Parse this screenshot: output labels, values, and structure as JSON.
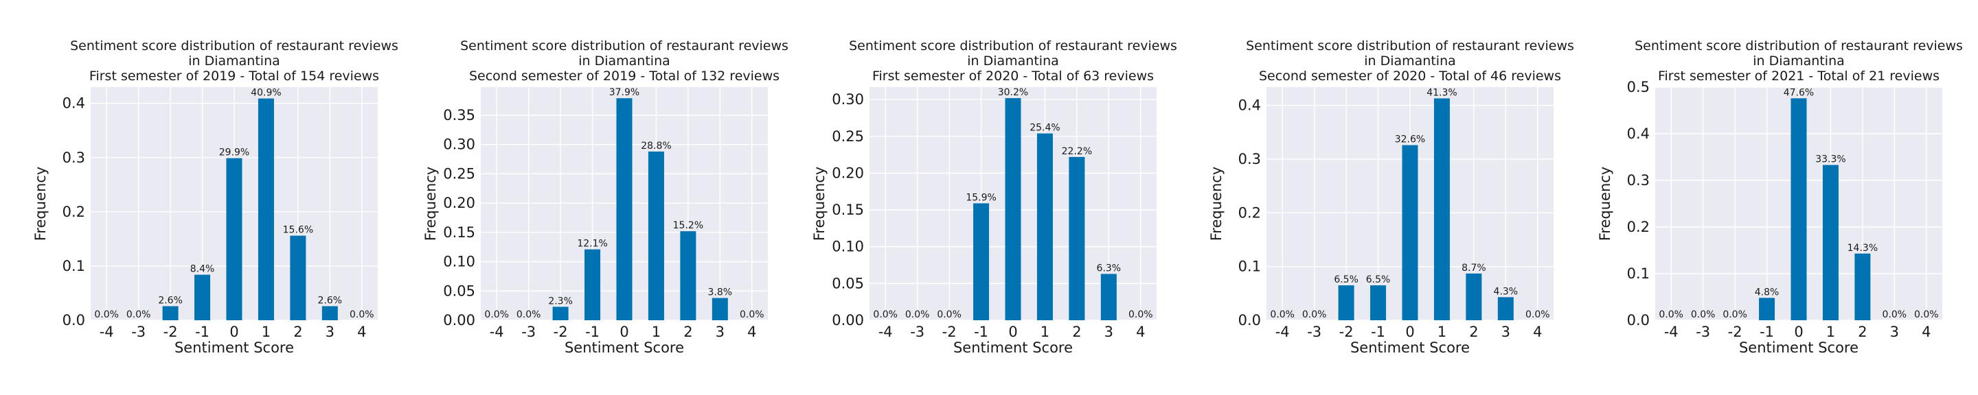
{
  "colors": {
    "bar": "#0173b2",
    "plot_bg": "#eaeaf2",
    "grid": "#ffffff"
  },
  "chart_data": [
    {
      "type": "bar",
      "title": [
        "Sentiment score distribution of restaurant reviews",
        "in Diamantina",
        "First semester of 2019 - Total of 154 reviews"
      ],
      "xlabel": "Sentiment Score",
      "ylabel": "Frequency",
      "categories": [
        "-4",
        "-3",
        "-2",
        "-1",
        "0",
        "1",
        "2",
        "3",
        "4"
      ],
      "values": [
        0.0,
        0.0,
        0.026,
        0.084,
        0.299,
        0.409,
        0.156,
        0.026,
        0.0
      ],
      "data_labels": [
        "0.0%",
        "0.0%",
        "2.6%",
        "8.4%",
        "29.9%",
        "40.9%",
        "15.6%",
        "2.6%",
        "0.0%"
      ],
      "yticks": [
        "0.0",
        "0.1",
        "0.2",
        "0.3",
        "0.4"
      ],
      "ytick_values": [
        0,
        0.1,
        0.2,
        0.3,
        0.4
      ],
      "ylim": [
        0,
        0.43
      ],
      "grid": true
    },
    {
      "type": "bar",
      "title": [
        "Sentiment score distribution of restaurant reviews",
        "in Diamantina",
        "Second semester of 2019 - Total of 132 reviews"
      ],
      "xlabel": "Sentiment Score",
      "ylabel": "Frequency",
      "categories": [
        "-4",
        "-3",
        "-2",
        "-1",
        "0",
        "1",
        "2",
        "3",
        "4"
      ],
      "values": [
        0.0,
        0.0,
        0.023,
        0.121,
        0.379,
        0.288,
        0.152,
        0.038,
        0.0
      ],
      "data_labels": [
        "0.0%",
        "0.0%",
        "2.3%",
        "12.1%",
        "37.9%",
        "28.8%",
        "15.2%",
        "3.8%",
        "0.0%"
      ],
      "yticks": [
        "0.00",
        "0.05",
        "0.10",
        "0.15",
        "0.20",
        "0.25",
        "0.30",
        "0.35"
      ],
      "ytick_values": [
        0,
        0.05,
        0.1,
        0.15,
        0.2,
        0.25,
        0.3,
        0.35
      ],
      "ylim": [
        0,
        0.398
      ],
      "grid": true
    },
    {
      "type": "bar",
      "title": [
        "Sentiment score distribution of restaurant reviews",
        "in Diamantina",
        "First semester of 2020 - Total of 63 reviews"
      ],
      "xlabel": "Sentiment Score",
      "ylabel": "Frequency",
      "categories": [
        "-4",
        "-3",
        "-2",
        "-1",
        "0",
        "1",
        "2",
        "3",
        "4"
      ],
      "values": [
        0.0,
        0.0,
        0.0,
        0.159,
        0.302,
        0.254,
        0.222,
        0.063,
        0.0
      ],
      "data_labels": [
        "0.0%",
        "0.0%",
        "0.0%",
        "15.9%",
        "30.2%",
        "25.4%",
        "22.2%",
        "6.3%",
        "0.0%"
      ],
      "yticks": [
        "0.00",
        "0.05",
        "0.10",
        "0.15",
        "0.20",
        "0.25",
        "0.30"
      ],
      "ytick_values": [
        0,
        0.05,
        0.1,
        0.15,
        0.2,
        0.25,
        0.3
      ],
      "ylim": [
        0,
        0.317
      ],
      "grid": true
    },
    {
      "type": "bar",
      "title": [
        "Sentiment score distribution of restaurant reviews",
        "in Diamantina",
        "Second semester of 2020 - Total of 46 reviews"
      ],
      "xlabel": "Sentiment Score",
      "ylabel": "Frequency",
      "categories": [
        "-4",
        "-3",
        "-2",
        "-1",
        "0",
        "1",
        "2",
        "3",
        "4"
      ],
      "values": [
        0.0,
        0.0,
        0.065,
        0.065,
        0.326,
        0.413,
        0.087,
        0.043,
        0.0
      ],
      "data_labels": [
        "0.0%",
        "0.0%",
        "6.5%",
        "6.5%",
        "32.6%",
        "41.3%",
        "8.7%",
        "4.3%",
        "0.0%"
      ],
      "yticks": [
        "0.0",
        "0.1",
        "0.2",
        "0.3",
        "0.4"
      ],
      "ytick_values": [
        0,
        0.1,
        0.2,
        0.3,
        0.4
      ],
      "ylim": [
        0,
        0.434
      ],
      "grid": true
    },
    {
      "type": "bar",
      "title": [
        "Sentiment score distribution of restaurant reviews",
        "in Diamantina",
        "First semester of 2021 - Total of 21 reviews"
      ],
      "xlabel": "Sentiment Score",
      "ylabel": "Frequency",
      "categories": [
        "-4",
        "-3",
        "-2",
        "-1",
        "0",
        "1",
        "2",
        "3",
        "4"
      ],
      "values": [
        0.0,
        0.0,
        0.0,
        0.048,
        0.476,
        0.333,
        0.143,
        0.0,
        0.0
      ],
      "data_labels": [
        "0.0%",
        "0.0%",
        "0.0%",
        "4.8%",
        "47.6%",
        "33.3%",
        "14.3%",
        "0.0%",
        "0.0%"
      ],
      "yticks": [
        "0.0",
        "0.1",
        "0.2",
        "0.3",
        "0.4",
        "0.5"
      ],
      "ytick_values": [
        0,
        0.1,
        0.2,
        0.3,
        0.4,
        0.5
      ],
      "ylim": [
        0,
        0.5
      ],
      "grid": true
    }
  ]
}
